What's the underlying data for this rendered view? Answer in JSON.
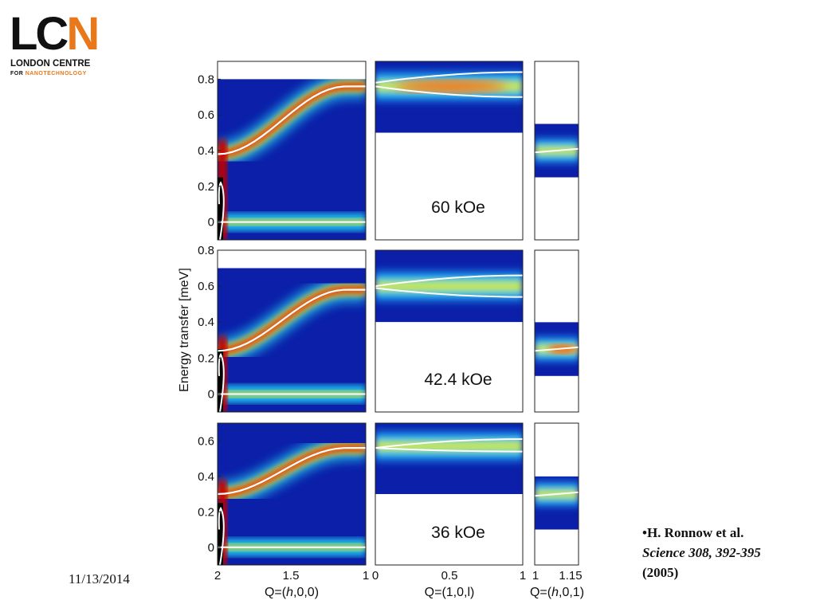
{
  "logo": {
    "mark_lc": "LC",
    "mark_n": "N",
    "line1": "LONDON CENTRE",
    "line2_a": "FOR ",
    "line2_b": "NANOTECHNOLOGY"
  },
  "date": "11/13/2014",
  "reference": {
    "authors": "•H. Ronnow et al.",
    "journal": "Science 308, 392-395",
    "year": "(2005)"
  },
  "colors": {
    "colormap": "jet",
    "curve": "#ffffff",
    "logo_orange": "#e8781a"
  },
  "figure": {
    "ylabel": "Energy transfer [meV]",
    "xlabel_col1": "Q=(h,0,0)",
    "xlabel_col2": "Q=(1,0,l)",
    "xlabel_col3": "Q=(h,0,1)",
    "xticks_col1": [
      "2",
      "1.5",
      "1"
    ],
    "xticks_col2": [
      "0",
      "0.5",
      "1"
    ],
    "xticks_col3": [
      "1",
      "1.15"
    ],
    "panels": [
      {
        "field": "60 kOe",
        "yticks": [
          "0",
          "0.2",
          "0.4",
          "0.6",
          "0.8"
        ],
        "yrange": [
          -0.1,
          0.9
        ],
        "data_top_col1": 0.8,
        "col2_range": [
          0.5,
          0.9
        ],
        "col3_range": [
          0.25,
          0.55
        ]
      },
      {
        "field": "42.4 kOe",
        "yticks": [
          "0",
          "0.2",
          "0.4",
          "0.6",
          "0.8"
        ],
        "yrange": [
          -0.1,
          0.8
        ],
        "data_top_col1": 0.7,
        "col2_range": [
          0.4,
          0.8
        ],
        "col3_range": [
          0.1,
          0.4
        ]
      },
      {
        "field": "36 kOe",
        "yticks": [
          "0",
          "0.2",
          "0.4",
          "0.6"
        ],
        "yrange": [
          -0.1,
          0.7
        ],
        "data_top_col1": 0.7,
        "col2_range": [
          0.3,
          0.7
        ],
        "col3_range": [
          0.1,
          0.4
        ]
      }
    ]
  }
}
